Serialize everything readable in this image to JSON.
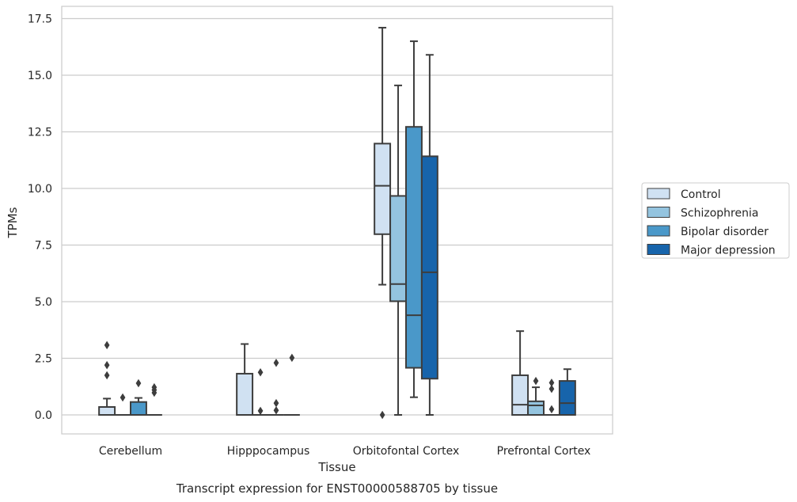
{
  "caption": "Transcript expression for ENST00000588705 by tissue",
  "chart_data": {
    "type": "box",
    "title": "",
    "xlabel": "Tissue",
    "ylabel": "TPMs",
    "ylim": [
      -0.8,
      18.0
    ],
    "yticks": [
      "0.0",
      "2.5",
      "5.0",
      "7.5",
      "10.0",
      "12.5",
      "15.0",
      "17.5"
    ],
    "ytick_values": [
      0,
      2.5,
      5,
      7.5,
      10,
      12.5,
      15,
      17.5
    ],
    "grid": "horizontal",
    "legend_position": "right",
    "categories": [
      "Cerebellum",
      "Hipppocampus",
      "Orbitofontal Cortex",
      "Prefrontal Cortex"
    ],
    "series": [
      {
        "name": "Control",
        "color": "#d0e1f2",
        "boxes": [
          {
            "whislo": 0,
            "q1": 0,
            "med": 0,
            "q3": 0.35,
            "whishi": 0.72,
            "fliers": [
              1.75,
              2.2,
              3.08
            ]
          },
          {
            "whislo": 0,
            "q1": 0,
            "med": 0,
            "q3": 1.82,
            "whishi": 3.13,
            "fliers": []
          },
          {
            "whislo": 5.75,
            "q1": 7.98,
            "med": 10.12,
            "q3": 11.98,
            "whishi": 17.1,
            "fliers": [
              0.0
            ]
          },
          {
            "whislo": 0,
            "q1": 0,
            "med": 0.45,
            "q3": 1.75,
            "whishi": 3.7,
            "fliers": []
          }
        ]
      },
      {
        "name": "Schizophrenia",
        "color": "#94c4df",
        "boxes": [
          {
            "whislo": 0,
            "q1": 0,
            "med": 0,
            "q3": 0,
            "whishi": 0,
            "fliers": [
              0.77
            ]
          },
          {
            "whislo": 0,
            "q1": 0,
            "med": 0,
            "q3": 0,
            "whishi": 0,
            "fliers": [
              0.18,
              1.88
            ]
          },
          {
            "whislo": 0,
            "q1": 5.02,
            "med": 5.78,
            "q3": 9.67,
            "whishi": 14.55,
            "fliers": []
          },
          {
            "whislo": 0,
            "q1": 0,
            "med": 0.42,
            "q3": 0.6,
            "whishi": 1.22,
            "fliers": [
              1.5
            ]
          }
        ]
      },
      {
        "name": "Bipolar disorder",
        "color": "#4a98c9",
        "boxes": [
          {
            "whislo": 0,
            "q1": 0,
            "med": 0,
            "q3": 0.57,
            "whishi": 0.75,
            "fliers": [
              1.4
            ]
          },
          {
            "whislo": 0,
            "q1": 0,
            "med": 0,
            "q3": 0,
            "whishi": 0,
            "fliers": [
              0.2,
              0.52,
              2.3
            ]
          },
          {
            "whislo": 0.78,
            "q1": 2.08,
            "med": 4.4,
            "q3": 12.72,
            "whishi": 16.5,
            "fliers": []
          },
          {
            "whislo": 0,
            "q1": 0,
            "med": 0,
            "q3": 0,
            "whishi": 0,
            "fliers": [
              0.25,
              1.15,
              1.42
            ]
          }
        ]
      },
      {
        "name": "Major depression",
        "color": "#1764ab",
        "boxes": [
          {
            "whislo": 0,
            "q1": 0,
            "med": 0,
            "q3": 0,
            "whishi": 0,
            "fliers": [
              0.98,
              1.1,
              1.22
            ]
          },
          {
            "whislo": 0,
            "q1": 0,
            "med": 0,
            "q3": 0,
            "whishi": 0,
            "fliers": [
              2.52
            ]
          },
          {
            "whislo": 0,
            "q1": 1.6,
            "med": 6.3,
            "q3": 11.42,
            "whishi": 15.9,
            "fliers": []
          },
          {
            "whislo": 0,
            "q1": 0,
            "med": 0.52,
            "q3": 1.5,
            "whishi": 2.02,
            "fliers": []
          }
        ]
      }
    ]
  }
}
